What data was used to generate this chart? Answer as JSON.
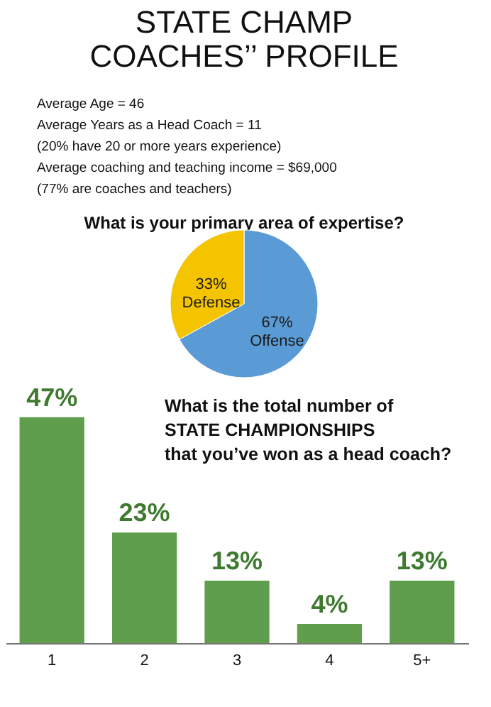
{
  "chart_data": [
    {
      "type": "pie",
      "title": "STATE CHAMP\nCOACHES’’ PROFILE",
      "subtitle": "What is your primary area of expertise?",
      "annotations": [
        "Average Age = 46",
        "Average Years as a Head Coach = 11",
        "(20% have 20 or more years experience)",
        "Average coaching and teaching income = $69,000",
        "(77% are coaches and teachers)"
      ],
      "categories": [
        "Offense",
        "Defense"
      ],
      "values": [
        67,
        33
      ],
      "colors": [
        "#5b9bd5",
        "#f5c400"
      ],
      "value_labels": [
        "67%",
        "33%"
      ]
    },
    {
      "type": "bar",
      "title": "What is the total number of\nSTATE CHAMPIONSHIPS\nthat you’ve won as a head coach?",
      "categories": [
        "1",
        "2",
        "3",
        "4",
        "5+"
      ],
      "values": [
        47,
        23,
        13,
        4,
        13
      ],
      "color": "#5e9e4c",
      "value_labels": [
        "47%",
        "23%",
        "13%",
        "4%",
        "13%"
      ]
    }
  ]
}
